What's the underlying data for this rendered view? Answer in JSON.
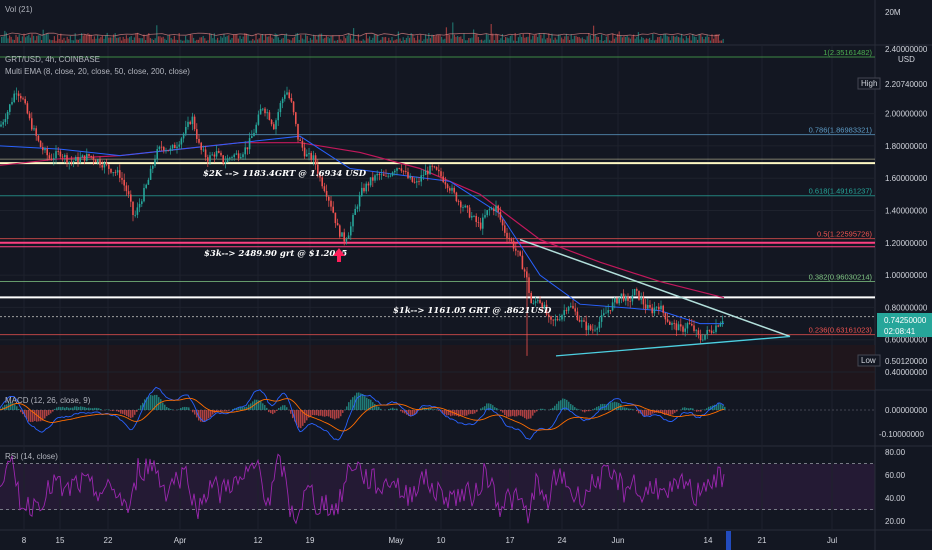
{
  "chart_data": {
    "type": "candlestick",
    "symbol_title": "GRT/USD, 4h, COINBASE",
    "indicator_label": "Multi EMA (8, close, 20, close, 50, close, 200, close)",
    "volume_label": "Vol (21)",
    "volume_axis_label": "20M",
    "currency_label": "USD",
    "y_axis_ticks": [
      "2.00000000",
      "1.80000000",
      "1.60000000",
      "1.40000000",
      "1.20000000",
      "1.00000000",
      "0.80000000",
      "0.60000000",
      "0.40000000"
    ],
    "y_axis_top_tick": "2.40000000",
    "high_label": "High",
    "high_value": "2.20740000",
    "low_label": "Low",
    "low_value": "0.50120000",
    "current_price": "0.74250000",
    "countdown": "02:08:41",
    "x_axis_ticks": [
      "8",
      "15",
      "22",
      "Apr",
      "12",
      "19",
      "May",
      "10",
      "17",
      "24",
      "Jun",
      "14",
      "21",
      "Jul"
    ],
    "fib_levels": [
      {
        "label": "0.786(1.86983321)",
        "price": 1.8698,
        "color": "#5d9cc7"
      },
      {
        "label": "0.618(1.49161237)",
        "price": 1.4916,
        "color": "#26a69a"
      },
      {
        "label": "0.5(1.22595726)",
        "price": 1.226,
        "color": "#ef5350"
      },
      {
        "label": "0.382(0.96030214)",
        "price": 0.9603,
        "color": "#81c784"
      },
      {
        "label": "0.236(0.63161023)",
        "price": 0.6316,
        "color": "#ef5350"
      },
      {
        "label": "1(2.35161482)",
        "price": 2.3516,
        "color": "#4caf50"
      }
    ],
    "horizontal_lines": [
      {
        "price": 1.6934,
        "color": "#fff9c4"
      },
      {
        "price": 1.2005,
        "color": "#ff4081"
      },
      {
        "price": 0.8621,
        "color": "#ffffff"
      },
      {
        "price": 0.7425,
        "color": "#9e9e9e"
      }
    ],
    "annotations": [
      {
        "text": "$2K --> 1183.4GRT @ 1.6934 USD"
      },
      {
        "text": "$3k--> 2489.90 grt @ $1.2005"
      },
      {
        "text": "$1k--> 1161.05 GRT @ .8621USD"
      }
    ],
    "price_path": [
      [
        0,
        1.92
      ],
      [
        8,
        2.02
      ],
      [
        16,
        2.15
      ],
      [
        22,
        2.1
      ],
      [
        30,
        1.95
      ],
      [
        40,
        1.8
      ],
      [
        50,
        1.72
      ],
      [
        60,
        1.76
      ],
      [
        70,
        1.7
      ],
      [
        80,
        1.72
      ],
      [
        90,
        1.74
      ],
      [
        100,
        1.7
      ],
      [
        110,
        1.66
      ],
      [
        120,
        1.62
      ],
      [
        128,
        1.5
      ],
      [
        134,
        1.35
      ],
      [
        140,
        1.45
      ],
      [
        148,
        1.58
      ],
      [
        156,
        1.75
      ],
      [
        162,
        1.8
      ],
      [
        170,
        1.77
      ],
      [
        178,
        1.82
      ],
      [
        186,
        1.9
      ],
      [
        192,
        1.98
      ],
      [
        200,
        1.78
      ],
      [
        208,
        1.72
      ],
      [
        216,
        1.76
      ],
      [
        224,
        1.7
      ],
      [
        232,
        1.74
      ],
      [
        240,
        1.75
      ],
      [
        248,
        1.8
      ],
      [
        256,
        1.92
      ],
      [
        262,
        2.05
      ],
      [
        268,
        2.0
      ],
      [
        274,
        1.92
      ],
      [
        280,
        2.05
      ],
      [
        286,
        2.15
      ],
      [
        292,
        2.05
      ],
      [
        298,
        1.85
      ],
      [
        306,
        1.74
      ],
      [
        314,
        1.72
      ],
      [
        320,
        1.6
      ],
      [
        326,
        1.52
      ],
      [
        332,
        1.42
      ],
      [
        338,
        1.28
      ],
      [
        344,
        1.22
      ],
      [
        350,
        1.28
      ],
      [
        356,
        1.42
      ],
      [
        362,
        1.52
      ],
      [
        370,
        1.58
      ],
      [
        378,
        1.62
      ],
      [
        386,
        1.6
      ],
      [
        394,
        1.66
      ],
      [
        400,
        1.68
      ],
      [
        408,
        1.6
      ],
      [
        416,
        1.56
      ],
      [
        424,
        1.63
      ],
      [
        432,
        1.66
      ],
      [
        440,
        1.62
      ],
      [
        448,
        1.56
      ],
      [
        456,
        1.48
      ],
      [
        464,
        1.42
      ],
      [
        472,
        1.36
      ],
      [
        480,
        1.3
      ],
      [
        488,
        1.4
      ],
      [
        496,
        1.42
      ],
      [
        504,
        1.28
      ],
      [
        512,
        1.2
      ],
      [
        520,
        1.1
      ],
      [
        526,
        1.0
      ],
      [
        532,
        0.8
      ],
      [
        538,
        0.86
      ],
      [
        544,
        0.8
      ],
      [
        550,
        0.7
      ],
      [
        556,
        0.72
      ],
      [
        562,
        0.76
      ],
      [
        568,
        0.82
      ],
      [
        574,
        0.78
      ],
      [
        580,
        0.72
      ],
      [
        586,
        0.68
      ],
      [
        592,
        0.66
      ],
      [
        598,
        0.7
      ],
      [
        604,
        0.75
      ],
      [
        610,
        0.8
      ],
      [
        616,
        0.84
      ],
      [
        622,
        0.88
      ],
      [
        628,
        0.82
      ],
      [
        634,
        0.9
      ],
      [
        640,
        0.86
      ],
      [
        646,
        0.8
      ],
      [
        652,
        0.78
      ],
      [
        658,
        0.82
      ],
      [
        664,
        0.76
      ],
      [
        670,
        0.7
      ],
      [
        676,
        0.68
      ],
      [
        682,
        0.66
      ],
      [
        688,
        0.7
      ],
      [
        694,
        0.66
      ],
      [
        700,
        0.6
      ],
      [
        706,
        0.64
      ],
      [
        712,
        0.66
      ],
      [
        718,
        0.7
      ],
      [
        724,
        0.74
      ]
    ],
    "ema_200_path": [
      [
        0,
        1.68
      ],
      [
        60,
        1.72
      ],
      [
        120,
        1.74
      ],
      [
        180,
        1.78
      ],
      [
        240,
        1.82
      ],
      [
        300,
        1.82
      ],
      [
        360,
        1.76
      ],
      [
        420,
        1.66
      ],
      [
        480,
        1.5
      ],
      [
        540,
        1.22
      ],
      [
        600,
        1.08
      ],
      [
        660,
        0.96
      ],
      [
        724,
        0.86
      ]
    ],
    "ema_50_path": [
      [
        0,
        1.8
      ],
      [
        60,
        1.78
      ],
      [
        120,
        1.74
      ],
      [
        180,
        1.78
      ],
      [
        240,
        1.82
      ],
      [
        300,
        1.86
      ],
      [
        350,
        1.66
      ],
      [
        400,
        1.62
      ],
      [
        450,
        1.58
      ],
      [
        500,
        1.38
      ],
      [
        540,
        1.0
      ],
      [
        580,
        0.82
      ],
      [
        620,
        0.8
      ],
      [
        660,
        0.78
      ],
      [
        700,
        0.7
      ],
      [
        724,
        0.7
      ]
    ],
    "triangle_upper": [
      [
        520,
        1.22
      ],
      [
        790,
        0.62
      ]
    ],
    "triangle_lower": [
      [
        556,
        0.5
      ],
      [
        790,
        0.62
      ]
    ],
    "macd_label": "MACD (12, 26, close, 9)",
    "macd_ticks": [
      "0.00000000",
      "-0.10000000"
    ],
    "rsi_label": "RSI (14, close)",
    "rsi_ticks": [
      "80.00",
      "60.00",
      "40.00",
      "20.00"
    ],
    "rsi_upper": 70,
    "rsi_lower": 30
  },
  "colors": {
    "background": "#131722",
    "up": "#26a69a",
    "down": "#ef5350",
    "grid": "#1e222d",
    "ema200": "#c2185b",
    "ema50": "#2962ff",
    "rsi_line": "#9c27b0",
    "triangle": "#b2dfdb"
  }
}
